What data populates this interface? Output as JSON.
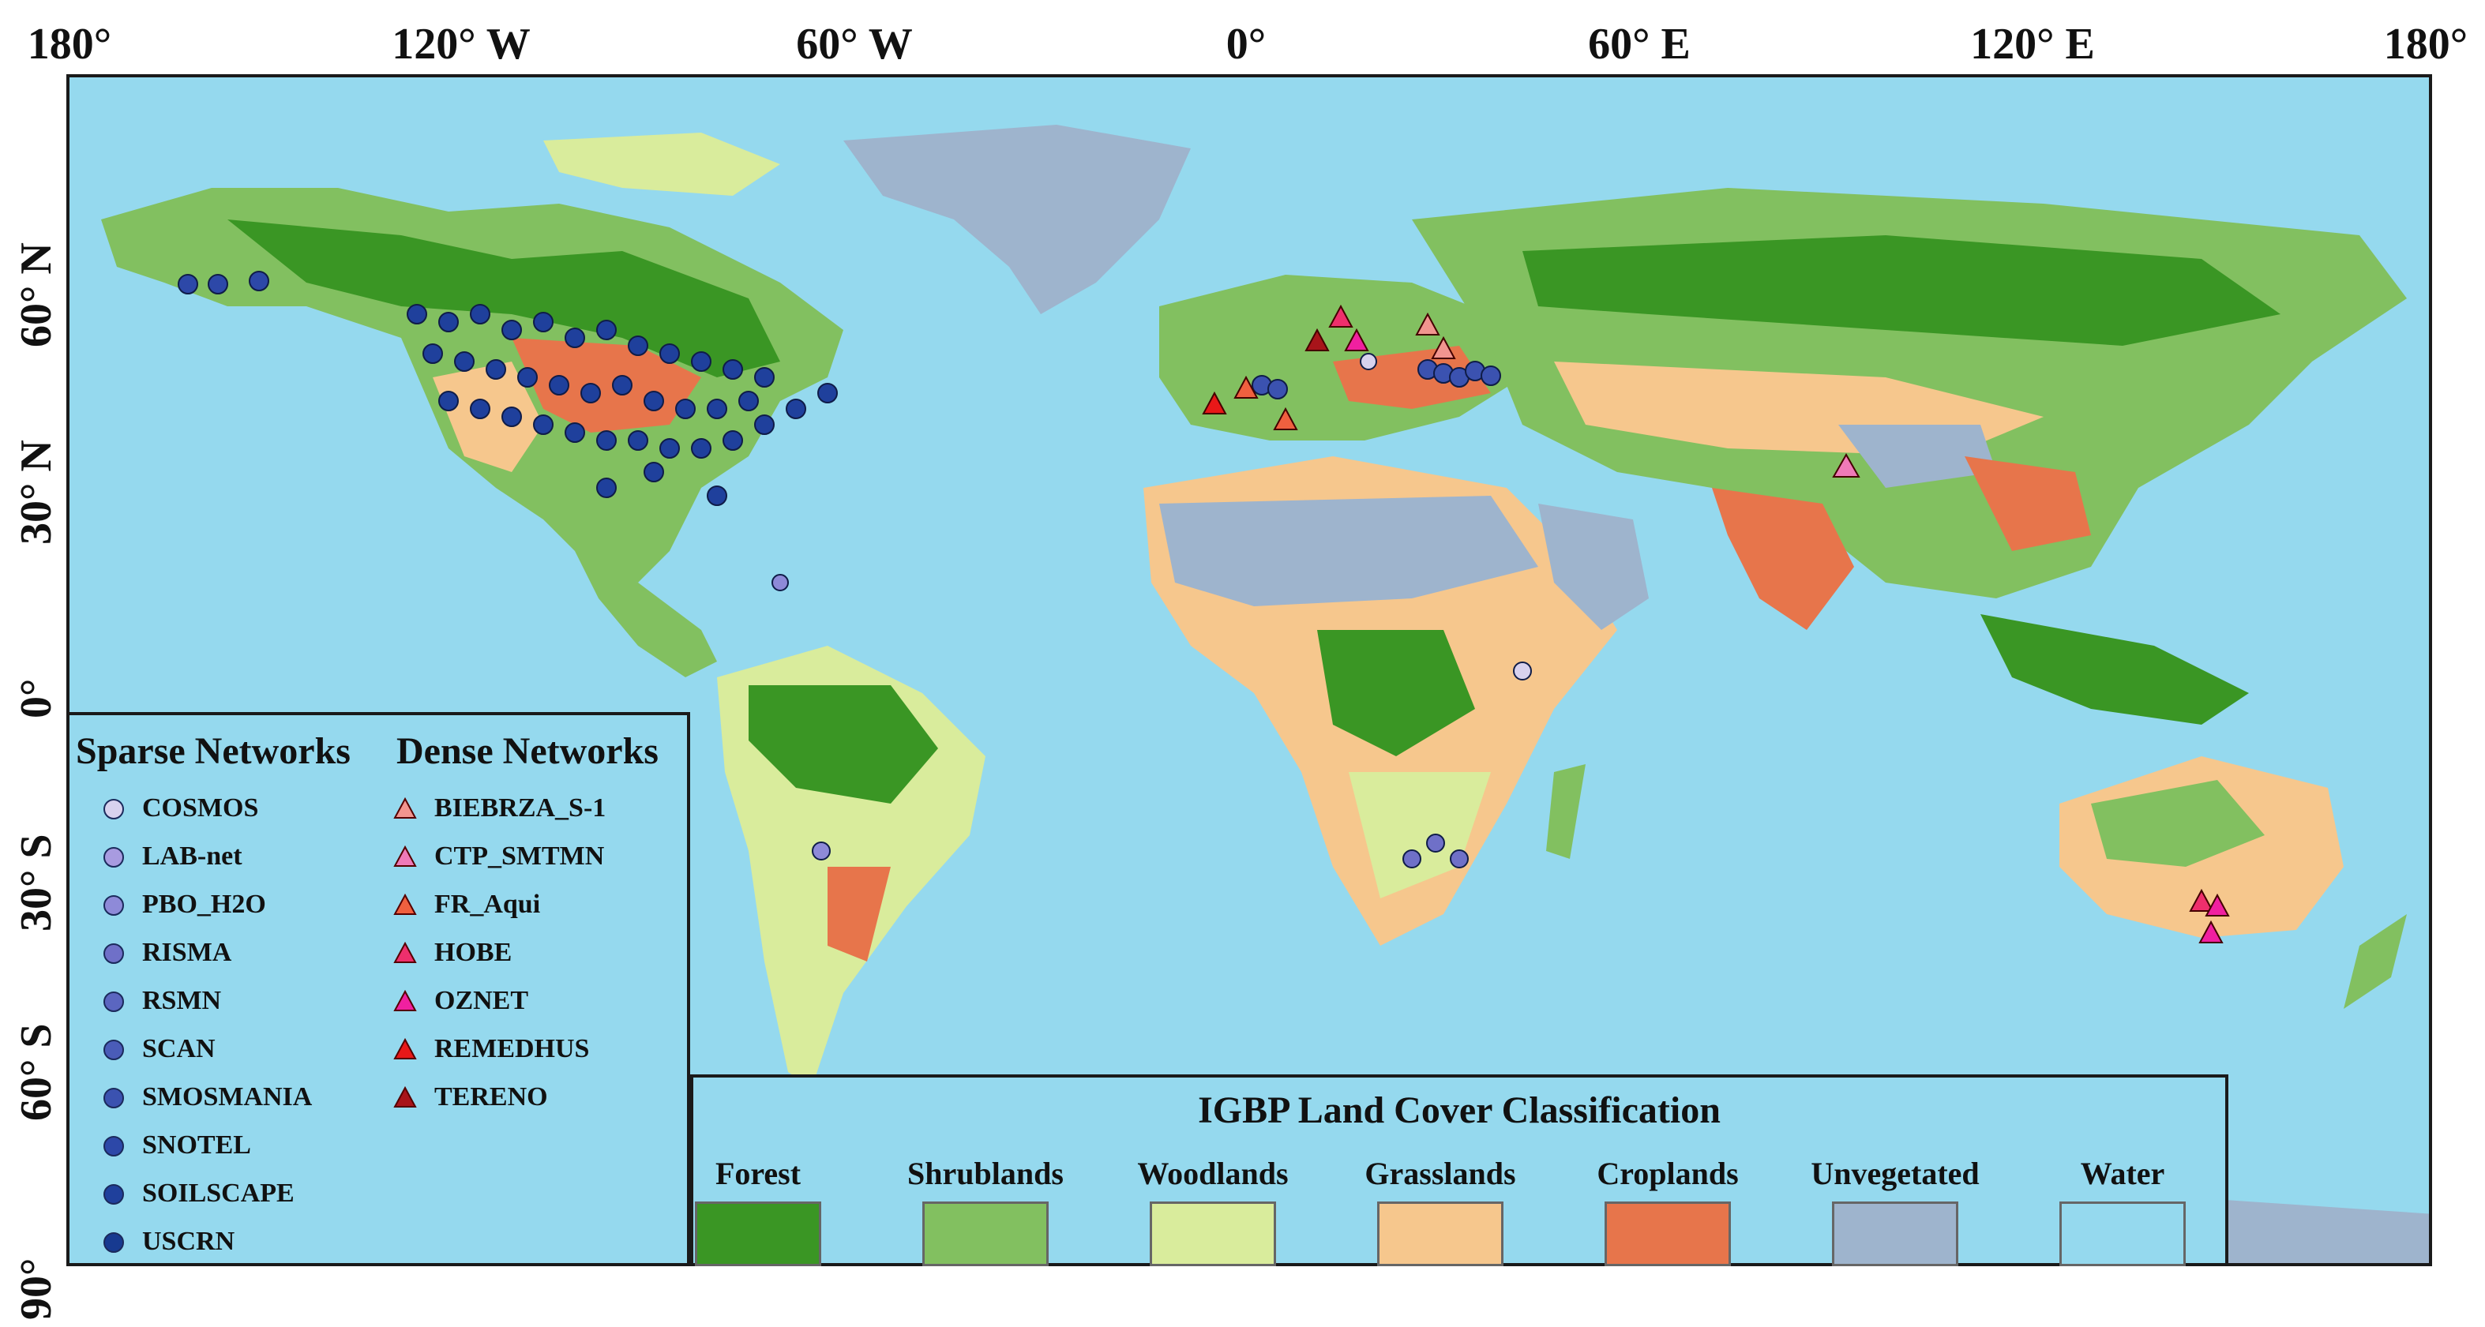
{
  "longitude_labels": [
    "180°",
    "120° W",
    "60° W",
    "0°",
    "60° E",
    "120° E",
    "180°"
  ],
  "latitude_labels": [
    "60° N",
    "30° N",
    "0°",
    "30° S",
    "60° S",
    "90°"
  ],
  "legend": {
    "sparse_title": "Sparse Networks",
    "dense_title": "Dense Networks",
    "sparse_networks": [
      {
        "name": "COSMOS",
        "color": "#d8d2ee"
      },
      {
        "name": "LAB-net",
        "color": "#a89be0"
      },
      {
        "name": "PBO_H2O",
        "color": "#8e8ad8"
      },
      {
        "name": "RISMA",
        "color": "#6f70c8"
      },
      {
        "name": "RSMN",
        "color": "#5b66c0"
      },
      {
        "name": "SCAN",
        "color": "#4a5cb8"
      },
      {
        "name": "SMOSMANIA",
        "color": "#3b52b0"
      },
      {
        "name": "SNOTEL",
        "color": "#2d48a8"
      },
      {
        "name": "SOILSCAPE",
        "color": "#1f409c"
      },
      {
        "name": "USCRN",
        "color": "#173a90"
      }
    ],
    "dense_networks": [
      {
        "name": "BIEBRZA_S-1",
        "color": "#f1958f"
      },
      {
        "name": "CTP_SMTMN",
        "color": "#ef7ab8"
      },
      {
        "name": "FR_Aqui",
        "color": "#f0603f"
      },
      {
        "name": "HOBE",
        "color": "#ee2f6c"
      },
      {
        "name": "OZNET",
        "color": "#f020a0"
      },
      {
        "name": "REMEDHUS",
        "color": "#e81818"
      },
      {
        "name": "TERENO",
        "color": "#a8141a"
      }
    ]
  },
  "igbp": {
    "title": "IGBP Land Cover Classification",
    "classes": [
      {
        "name": "Forest",
        "color": "#3a9624"
      },
      {
        "name": "Shrublands",
        "color": "#82c060"
      },
      {
        "name": "Woodlands",
        "color": "#d9ec9c"
      },
      {
        "name": "Grasslands",
        "color": "#f6c78d"
      },
      {
        "name": "Croplands",
        "color": "#e7754b"
      },
      {
        "name": "Unvegetated",
        "color": "#9eb4cd"
      },
      {
        "name": "Water",
        "color": "#95d9ee"
      }
    ]
  }
}
